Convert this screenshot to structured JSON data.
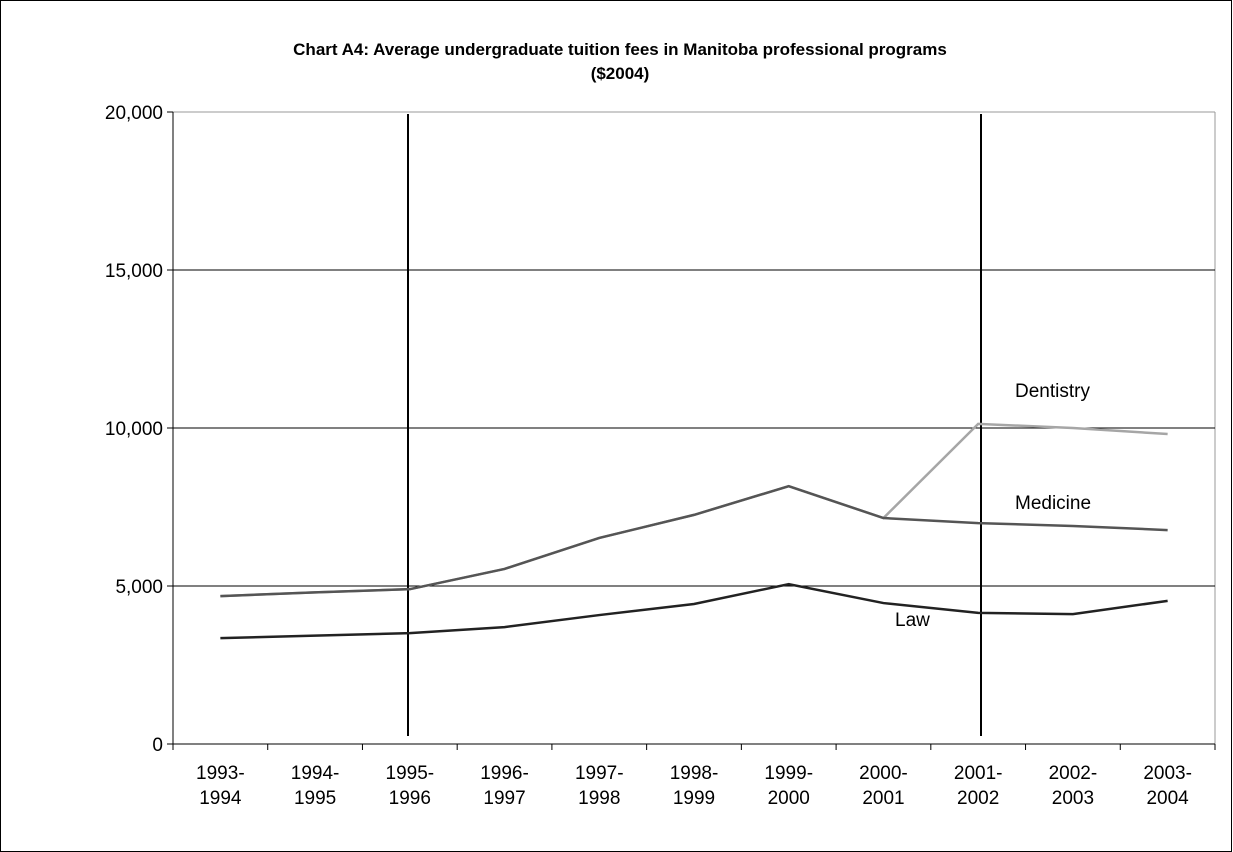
{
  "chart_data": {
    "type": "line",
    "title": "Chart A4: Average undergraduate tuition fees in Manitoba professional programs",
    "subtitle": "($2004)",
    "categories": [
      "1993-1994",
      "1994-1995",
      "1995-1996",
      "1996-1997",
      "1997-1998",
      "1998-1999",
      "1999-2000",
      "2000-2001",
      "2001-2002",
      "2002-2003",
      "2003-2004"
    ],
    "series": [
      {
        "name": "Dentistry",
        "color": "#a6a6a6",
        "values": [
          4680,
          4800,
          4900,
          5540,
          6520,
          7250,
          8160,
          7150,
          10130,
          10000,
          9810
        ]
      },
      {
        "name": "Medicine",
        "color": "#555555",
        "values": [
          4680,
          4800,
          4900,
          5540,
          6520,
          7250,
          8160,
          7150,
          6990,
          6900,
          6770
        ]
      },
      {
        "name": "Law",
        "color": "#222222",
        "values": [
          3350,
          3430,
          3510,
          3700,
          4080,
          4430,
          5060,
          4460,
          4150,
          4110,
          4530
        ]
      }
    ],
    "ylim": [
      0,
      20000
    ],
    "yticks": [
      0,
      {
        "value": 5000,
        "label": "5,000"
      },
      {
        "value": 10000,
        "label": "10,000"
      },
      {
        "value": 15000,
        "label": "15,000"
      },
      {
        "value": 20000,
        "label": "20,000"
      }
    ],
    "grid": true
  }
}
